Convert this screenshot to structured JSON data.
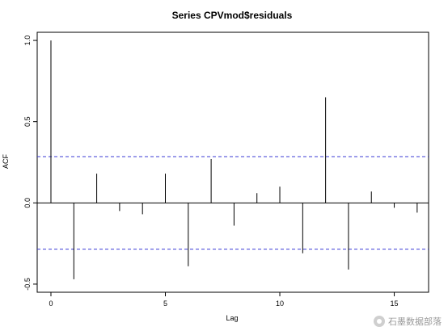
{
  "chart_data": {
    "type": "bar",
    "title": "Series  CPVmod$residuals",
    "xlabel": "Lag",
    "ylabel": "ACF",
    "xlim": [
      -0.6,
      16.5
    ],
    "ylim": [
      -0.55,
      1.05
    ],
    "x_ticks": [
      0,
      5,
      10,
      15
    ],
    "y_ticks": [
      1.0,
      0.5,
      0.0,
      -0.5
    ],
    "y_tick_labels": [
      "1.0",
      "0.5",
      "0.0",
      "-0.5"
    ],
    "x": [
      0,
      1,
      2,
      3,
      4,
      5,
      6,
      7,
      8,
      9,
      10,
      11,
      12,
      13,
      14,
      15,
      16
    ],
    "values": [
      1.0,
      -0.47,
      0.18,
      -0.05,
      -0.07,
      0.18,
      -0.39,
      0.27,
      -0.14,
      0.06,
      0.1,
      -0.31,
      0.65,
      -0.41,
      0.07,
      -0.03,
      -0.06
    ],
    "confidence_bounds": [
      0.285,
      -0.285
    ],
    "colors": {
      "lags": "#000000",
      "bounds": "#3b3bd6",
      "zero_line": "#000000"
    }
  },
  "watermark": {
    "text": "石墨数据部落",
    "icon": "wechat-icon"
  }
}
